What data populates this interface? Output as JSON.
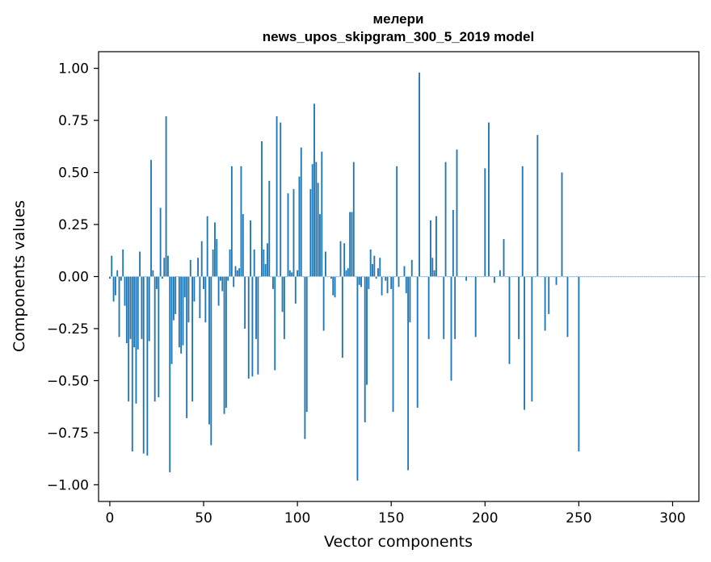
{
  "chart_data": {
    "type": "bar",
    "title_line1": "мелери",
    "title_line2": "news_upos_skipgram_300_5_2019 model",
    "xlabel": "Vector components",
    "ylabel": "Components values",
    "xlim": [
      -6,
      314
    ],
    "ylim": [
      -1.08,
      1.08
    ],
    "xticks": [
      0,
      50,
      100,
      150,
      200,
      250,
      300
    ],
    "xtick_labels": [
      "0",
      "50",
      "100",
      "150",
      "200",
      "250",
      "300"
    ],
    "yticks": [
      1.0,
      0.75,
      0.5,
      0.25,
      0.0,
      -0.25,
      -0.5,
      -0.75,
      -1.0
    ],
    "ytick_labels": [
      "1.00",
      "0.75",
      "0.50",
      "0.25",
      "0.00",
      "−0.25",
      "−0.50",
      "−0.75",
      "−1.00"
    ],
    "bar_color": "#1f77b4",
    "values": [
      -0.01,
      0.1,
      -0.12,
      -0.09,
      0.03,
      -0.29,
      -0.02,
      0.13,
      -0.14,
      -0.32,
      -0.6,
      -0.3,
      -0.84,
      -0.34,
      -0.61,
      -0.35,
      0.12,
      -0.3,
      -0.85,
      0.0,
      -0.86,
      -0.31,
      0.56,
      0.03,
      -0.6,
      -0.06,
      -0.58,
      0.33,
      -0.01,
      0.09,
      0.77,
      0.1,
      -0.94,
      -0.42,
      -0.21,
      -0.18,
      0.0,
      -0.34,
      -0.37,
      -0.33,
      -0.1,
      -0.68,
      -0.22,
      0.08,
      -0.6,
      -0.12,
      0.0,
      0.09,
      -0.2,
      0.17,
      -0.06,
      -0.22,
      0.29,
      -0.71,
      -0.81,
      0.13,
      0.26,
      0.18,
      -0.14,
      -0.02,
      -0.07,
      -0.66,
      -0.63,
      -0.02,
      0.13,
      0.53,
      -0.05,
      0.05,
      0.03,
      0.04,
      0.53,
      0.3,
      -0.25,
      0.0,
      -0.49,
      0.27,
      -0.48,
      0.13,
      -0.3,
      -0.47,
      0.0,
      0.65,
      0.13,
      0.06,
      0.16,
      0.46,
      0.0,
      -0.06,
      -0.45,
      0.77,
      0.0,
      0.74,
      -0.17,
      -0.3,
      0.0,
      0.4,
      0.03,
      0.02,
      0.42,
      -0.13,
      0.03,
      0.48,
      0.62,
      0.0,
      -0.78,
      -0.65,
      0.0,
      0.42,
      0.54,
      0.83,
      0.55,
      0.45,
      0.3,
      0.6,
      -0.26,
      0.12,
      0.0,
      0.0,
      -0.01,
      -0.09,
      -0.1,
      0.0,
      0.0,
      0.17,
      -0.39,
      0.16,
      0.03,
      0.04,
      0.31,
      0.31,
      0.55,
      0.0,
      -0.98,
      -0.04,
      -0.05,
      0.0,
      -0.7,
      -0.52,
      -0.06,
      0.13,
      0.06,
      0.1,
      -0.01,
      0.04,
      0.09,
      -0.09,
      0.0,
      -0.02,
      -0.08,
      0.0,
      -0.06,
      -0.65,
      0.0,
      0.53,
      -0.05,
      0.0,
      0.0,
      0.05,
      -0.08,
      -0.93,
      -0.22,
      0.08,
      0.0,
      0.0,
      -0.63,
      0.98,
      0.0,
      0.0,
      0.0,
      0.0,
      -0.3,
      0.27,
      0.09,
      0.03,
      0.29,
      0.0,
      0.0,
      0.0,
      -0.3,
      0.55,
      0.0,
      0.0,
      -0.5,
      0.32,
      -0.3,
      0.61,
      0.0,
      0.0,
      0.0,
      0.0,
      -0.02,
      0.0,
      0.0,
      0.0,
      0.0,
      -0.29,
      0.0,
      0.0,
      0.0,
      0.0,
      0.52,
      0.0,
      0.74,
      0.0,
      0.0,
      -0.03,
      0.0,
      0.0,
      0.03,
      0.0,
      0.18,
      0.0,
      0.0,
      -0.42,
      0.0,
      0.0,
      0.0,
      0.0,
      -0.3,
      0.0,
      0.53,
      -0.64,
      0.0,
      0.0,
      0.0,
      -0.6,
      0.0,
      0.0,
      0.68,
      0.0,
      0.0,
      0.0,
      -0.26,
      0.0,
      -0.18,
      0.0,
      0.0,
      0.0,
      -0.04,
      0.0,
      0.0,
      0.5,
      0.0,
      0.0,
      -0.29,
      0.0,
      0.0,
      0.0,
      0.0,
      0.0,
      -0.84,
      0.0,
      0.0,
      0.0,
      0.0,
      0.0,
      0.0,
      0.0,
      0.0,
      0.0,
      0.0,
      0.0,
      0.0,
      0.0,
      0.0,
      0.0,
      0.0,
      0.0,
      0.0,
      0.0,
      0.0,
      0.0,
      0.0,
      0.0,
      0.0,
      0.0,
      0.0,
      0.0,
      0.0,
      0.0,
      0.0,
      0.0,
      0.0,
      0.0,
      0.0,
      0.0,
      0.0,
      0.0,
      0.0,
      0.0,
      0.0,
      0.0,
      0.0,
      0.0,
      0.0,
      0.0,
      0.0,
      0.0,
      0.0,
      0.0,
      0.0,
      0.0,
      0.0,
      0.0,
      0.0,
      0.0,
      0.0,
      0.0,
      0.0,
      0.0,
      0.0,
      0.0,
      0.0,
      0.0,
      0.0,
      0.0,
      0.0,
      0.0
    ]
  }
}
